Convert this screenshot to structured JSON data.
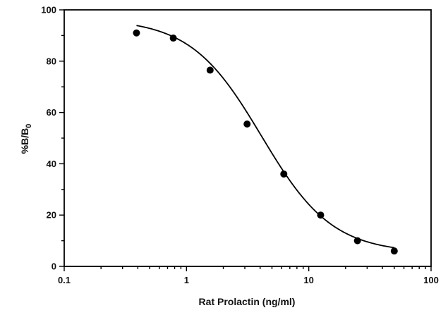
{
  "chart_data": {
    "type": "scatter",
    "xlabel": "Rat Prolactin (ng/ml)",
    "ylabel": "%B/B",
    "ylabel_subscript": "0",
    "x_scale": "log",
    "xlim": [
      0.1,
      100
    ],
    "ylim": [
      0,
      100
    ],
    "x_tick_labels": [
      "0.1",
      "1",
      "10",
      "100"
    ],
    "y_tick_labels": [
      "0",
      "20",
      "40",
      "60",
      "80",
      "100"
    ],
    "grid": false,
    "legend": "none",
    "colors": {
      "points": "#000000",
      "curve": "#000000",
      "axes": "#000000"
    },
    "series": [
      {
        "values": [
          {
            "x": 0.39,
            "y": 91
          },
          {
            "x": 0.78,
            "y": 89
          },
          {
            "x": 1.56,
            "y": 76.5
          },
          {
            "x": 3.13,
            "y": 55.5
          },
          {
            "x": 6.25,
            "y": 36
          },
          {
            "x": 12.5,
            "y": 20
          },
          {
            "x": 25,
            "y": 10
          },
          {
            "x": 50,
            "y": 6
          }
        ]
      }
    ],
    "fit_curve": {
      "type": "4PL",
      "top": 96.5,
      "bottom": 5.2,
      "ec50": 4.1,
      "hill": 1.5,
      "x_range": [
        0.39,
        50
      ]
    }
  }
}
